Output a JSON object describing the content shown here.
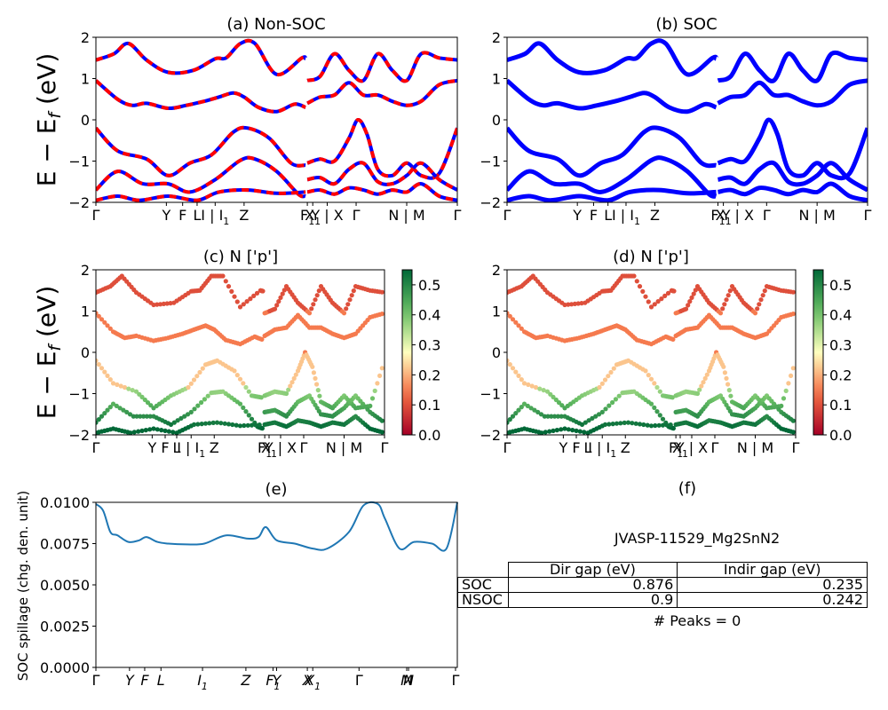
{
  "colors": {
    "nonsoc_a": "#ff0000",
    "nonsoc_b": "#0000ff",
    "soc": "#0000ff",
    "spillage": "#1f77b4"
  },
  "ylabel": "E − E",
  "ylabel_sub": "f",
  "ylabel_unit": "(eV)",
  "energy_ticks": [
    "2",
    "1",
    "0",
    "−1",
    "−2"
  ],
  "kpath_labels": [
    {
      "t": "Γ",
      "k": 0.0
    },
    {
      "t": "Y",
      "k": 0.195
    },
    {
      "t": "F",
      "k": 0.24
    },
    {
      "t": "L",
      "k": 0.28
    },
    {
      "t": "I | I",
      "k": 0.33,
      "sub": "1"
    },
    {
      "t": "Z",
      "k": 0.41
    },
    {
      "t": "F",
      "k": 0.585,
      "sub": "1"
    },
    {
      "t": "X",
      "k": 0.6,
      "sub": "1"
    },
    {
      "t": "Y | X",
      "k": 0.64
    },
    {
      "t": "Γ",
      "k": 0.72
    },
    {
      "t": "N | M",
      "k": 0.86
    },
    {
      "t": "Γ",
      "k": 1.0
    }
  ],
  "spill_labels": [
    {
      "t": "Γ",
      "k": 0.0
    },
    {
      "t": "Y",
      "k": 0.093
    },
    {
      "t": "F",
      "k": 0.135
    },
    {
      "t": "L",
      "k": 0.18
    },
    {
      "t": "I",
      "k": 0.295,
      "sub": "1"
    },
    {
      "t": "Z",
      "k": 0.415
    },
    {
      "t": "F",
      "k": 0.49,
      "sub": "1"
    },
    {
      "t": "Y",
      "k": 0.5
    },
    {
      "t": "X",
      "k": 0.585
    },
    {
      "t": "X",
      "k": 0.6,
      "sub": "1"
    },
    {
      "t": "Γ",
      "k": 0.728
    },
    {
      "t": "M",
      "k": 0.86
    },
    {
      "t": "N",
      "k": 0.865
    },
    {
      "t": "Γ",
      "k": 0.995
    }
  ],
  "colorbar_ticks": [
    "0.5",
    "0.4",
    "0.3",
    "0.2",
    "0.1",
    "0.0"
  ],
  "panel_f": {
    "title": "(f)",
    "material": "JVASP-11529_Mg2SnN2",
    "headers": [
      "Dir gap (eV)",
      "Indir gap (eV)"
    ],
    "rows": [
      {
        "label": "SOC",
        "dir": "0.876",
        "indir": "0.235"
      },
      {
        "label": "NSOC",
        "dir": "0.9",
        "indir": "0.242"
      }
    ],
    "peaks": "# Peaks = 0"
  },
  "chart_data": [
    {
      "panel": "a",
      "type": "line",
      "title": "(a) Non-SOC",
      "ylim": [
        -2,
        2
      ],
      "ylabel": "E − E_f (eV)",
      "bands": [
        {
          "name": "b1",
          "points": [
            [
              0.0,
              1.45
            ],
            [
              0.05,
              1.6
            ],
            [
              0.09,
              1.85
            ],
            [
              0.14,
              1.45
            ],
            [
              0.2,
              1.15
            ],
            [
              0.27,
              1.2
            ],
            [
              0.33,
              1.48
            ],
            [
              0.36,
              1.5
            ],
            [
              0.4,
              1.85
            ],
            [
              0.44,
              1.85
            ],
            [
              0.5,
              1.1
            ],
            [
              0.57,
              1.5
            ],
            [
              0.58,
              1.48
            ]
          ]
        },
        {
          "name": "b2",
          "points": [
            [
              0.0,
              0.95
            ],
            [
              0.06,
              0.5
            ],
            [
              0.1,
              0.35
            ],
            [
              0.14,
              0.4
            ],
            [
              0.2,
              0.28
            ],
            [
              0.25,
              0.35
            ],
            [
              0.3,
              0.45
            ],
            [
              0.34,
              0.55
            ],
            [
              0.38,
              0.65
            ],
            [
              0.41,
              0.55
            ],
            [
              0.45,
              0.3
            ],
            [
              0.5,
              0.2
            ],
            [
              0.55,
              0.38
            ],
            [
              0.58,
              0.3
            ]
          ]
        },
        {
          "name": "b3",
          "points": [
            [
              0.0,
              -0.2
            ],
            [
              0.06,
              -0.75
            ],
            [
              0.14,
              -0.95
            ],
            [
              0.2,
              -1.35
            ],
            [
              0.26,
              -1.05
            ],
            [
              0.32,
              -0.85
            ],
            [
              0.38,
              -0.3
            ],
            [
              0.42,
              -0.2
            ],
            [
              0.48,
              -0.45
            ],
            [
              0.54,
              -1.05
            ],
            [
              0.58,
              -1.1
            ]
          ]
        },
        {
          "name": "b4",
          "points": [
            [
              0.0,
              -1.7
            ],
            [
              0.06,
              -1.25
            ],
            [
              0.13,
              -1.55
            ],
            [
              0.2,
              -1.55
            ],
            [
              0.26,
              -1.75
            ],
            [
              0.33,
              -1.45
            ],
            [
              0.4,
              -0.98
            ],
            [
              0.44,
              -0.95
            ],
            [
              0.5,
              -1.25
            ],
            [
              0.56,
              -1.8
            ],
            [
              0.58,
              -1.85
            ]
          ]
        },
        {
          "name": "b5",
          "points": [
            [
              0.0,
              -1.95
            ],
            [
              0.06,
              -1.85
            ],
            [
              0.12,
              -1.95
            ],
            [
              0.2,
              -1.85
            ],
            [
              0.28,
              -1.95
            ],
            [
              0.34,
              -1.75
            ],
            [
              0.42,
              -1.7
            ],
            [
              0.5,
              -1.78
            ],
            [
              0.58,
              -1.75
            ]
          ]
        },
        {
          "name": "b6",
          "points": [
            [
              0.585,
              0.95
            ],
            [
              0.62,
              1.05
            ],
            [
              0.66,
              1.6
            ],
            [
              0.7,
              1.2
            ],
            [
              0.74,
              0.95
            ],
            [
              0.78,
              1.6
            ],
            [
              0.82,
              1.2
            ],
            [
              0.86,
              0.95
            ],
            [
              0.9,
              1.6
            ],
            [
              0.95,
              1.5
            ],
            [
              1.0,
              1.45
            ]
          ]
        },
        {
          "name": "b7",
          "points": [
            [
              0.585,
              0.4
            ],
            [
              0.62,
              0.55
            ],
            [
              0.66,
              0.6
            ],
            [
              0.7,
              0.9
            ],
            [
              0.74,
              0.6
            ],
            [
              0.78,
              0.6
            ],
            [
              0.82,
              0.45
            ],
            [
              0.86,
              0.35
            ],
            [
              0.9,
              0.45
            ],
            [
              0.95,
              0.85
            ],
            [
              1.0,
              0.95
            ]
          ]
        },
        {
          "name": "b8",
          "points": [
            [
              0.585,
              -1.05
            ],
            [
              0.62,
              -0.95
            ],
            [
              0.66,
              -1.0
            ],
            [
              0.7,
              -0.45
            ],
            [
              0.725,
              0.0
            ],
            [
              0.75,
              -0.35
            ],
            [
              0.78,
              -1.2
            ],
            [
              0.82,
              -1.35
            ],
            [
              0.86,
              -1.05
            ],
            [
              0.9,
              -1.35
            ],
            [
              0.95,
              -1.3
            ],
            [
              1.0,
              -0.2
            ]
          ]
        },
        {
          "name": "b9",
          "points": [
            [
              0.585,
              -1.45
            ],
            [
              0.62,
              -1.4
            ],
            [
              0.66,
              -1.55
            ],
            [
              0.7,
              -1.2
            ],
            [
              0.74,
              -1.05
            ],
            [
              0.78,
              -1.5
            ],
            [
              0.82,
              -1.55
            ],
            [
              0.86,
              -1.35
            ],
            [
              0.9,
              -1.05
            ],
            [
              0.95,
              -1.45
            ],
            [
              1.0,
              -1.7
            ]
          ]
        },
        {
          "name": "b10",
          "points": [
            [
              0.585,
              -1.75
            ],
            [
              0.62,
              -1.7
            ],
            [
              0.66,
              -1.8
            ],
            [
              0.7,
              -1.65
            ],
            [
              0.74,
              -1.7
            ],
            [
              0.78,
              -1.8
            ],
            [
              0.82,
              -1.7
            ],
            [
              0.86,
              -1.75
            ],
            [
              0.9,
              -1.55
            ],
            [
              0.95,
              -1.85
            ],
            [
              1.0,
              -1.95
            ]
          ]
        }
      ]
    },
    {
      "panel": "b",
      "type": "line",
      "title": "(b) SOC",
      "ylim": [
        -2,
        2
      ],
      "note_bands": "same band structure as (a), spin-split"
    },
    {
      "panel": "c",
      "type": "scatter",
      "title": "(c)  N ['p']",
      "ylim": [
        -2,
        2
      ],
      "colorbar": [
        0.0,
        0.55
      ],
      "note": "projected weights coloured with RdYlGn colormap"
    },
    {
      "panel": "d",
      "type": "scatter",
      "title": "(d) N ['p']",
      "ylim": [
        -2,
        2
      ],
      "colorbar": [
        0.0,
        0.55
      ]
    },
    {
      "panel": "e",
      "type": "line",
      "title": "(e)",
      "ylabel": "SOC spillage (chg. den. unit)",
      "ylim": [
        0.0,
        0.01
      ],
      "yticks": [
        "0.0100",
        "0.0075",
        "0.0050",
        "0.0025",
        "0.0000"
      ],
      "x": [
        0.0,
        0.02,
        0.04,
        0.06,
        0.09,
        0.12,
        0.14,
        0.17,
        0.2,
        0.25,
        0.3,
        0.36,
        0.42,
        0.45,
        0.47,
        0.5,
        0.55,
        0.6,
        0.64,
        0.7,
        0.74,
        0.78,
        0.8,
        0.84,
        0.88,
        0.93,
        0.97,
        1.0
      ],
      "y": [
        0.0099,
        0.0095,
        0.0082,
        0.008,
        0.0076,
        0.0077,
        0.0079,
        0.0076,
        0.0075,
        0.00745,
        0.0075,
        0.008,
        0.0078,
        0.0079,
        0.0085,
        0.0077,
        0.0075,
        0.0072,
        0.0072,
        0.0082,
        0.0098,
        0.0099,
        0.009,
        0.0072,
        0.0076,
        0.0075,
        0.0072,
        0.01
      ]
    }
  ]
}
